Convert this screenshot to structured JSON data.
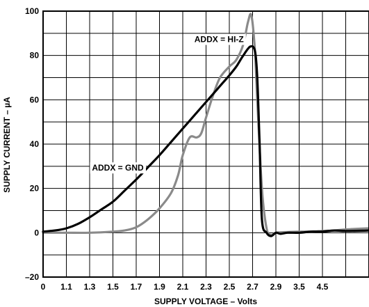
{
  "chart_data": {
    "type": "line",
    "title": "",
    "xlabel": "SUPPLY VOLTAGE – Volts",
    "ylabel": "SUPPLY CURRENT – µA",
    "x_tick_labels": [
      "0",
      "1.1",
      "1.3",
      "1.5",
      "1.7",
      "1.9",
      "2.1",
      "2.3",
      "2.5",
      "2.7",
      "2.9",
      "3.5",
      "4.5"
    ],
    "x_tick_positions": [
      0,
      1,
      2,
      3,
      4,
      5,
      6,
      7,
      8,
      9,
      10,
      11,
      12
    ],
    "y_ticks": [
      -20,
      0,
      20,
      40,
      60,
      80,
      100
    ],
    "y_tick_labels": [
      "–20",
      "0",
      "20",
      "40",
      "60",
      "80",
      "100"
    ],
    "xlim": [
      0,
      14
    ],
    "ylim": [
      -20,
      100
    ],
    "grid": true,
    "x_scale_note": "non-linear: x values below are the tick-index positions along the axis",
    "series": [
      {
        "name": "ADDX = GND",
        "color": "#000000",
        "x": [
          0,
          0.5,
          1,
          1.5,
          2,
          2.5,
          3,
          3.5,
          4,
          4.5,
          5,
          5.5,
          6,
          6.5,
          7,
          7.5,
          8,
          8.3,
          8.6,
          8.9,
          9.1,
          9.2,
          9.3,
          9.4,
          9.6,
          9.8,
          10,
          10.2,
          10.5,
          11,
          11.5,
          12,
          12.5,
          13,
          14
        ],
        "y": [
          0.5,
          1,
          2,
          4,
          7,
          10.5,
          14,
          19,
          24,
          29.5,
          35,
          41,
          47,
          53,
          59,
          65,
          71,
          75,
          80,
          84,
          82,
          70,
          40,
          6,
          0,
          -1.5,
          0,
          -0.5,
          0,
          0,
          0.5,
          0.5,
          1,
          0.8,
          1
        ]
      },
      {
        "name": "ADDX = HI-Z",
        "color": "#8a8a8a",
        "x": [
          0,
          1,
          2,
          3,
          3.5,
          4,
          4.5,
          5,
          5.5,
          5.8,
          6,
          6.3,
          6.6,
          6.8,
          7,
          7.3,
          7.6,
          8,
          8.3,
          8.6,
          8.8,
          8.95,
          9.1,
          9.2,
          9.4,
          9.6,
          9.8,
          10,
          10.5,
          11,
          11.5,
          12,
          12.5,
          13,
          14
        ],
        "y": [
          0,
          0,
          0,
          0.5,
          1,
          2.5,
          6,
          11,
          18,
          26,
          35,
          43,
          43,
          45,
          52,
          62,
          70,
          75,
          78,
          85,
          95,
          98,
          82,
          60,
          20,
          2,
          -1,
          0,
          0.3,
          0.5,
          0.5,
          0.8,
          1,
          1.5,
          2
        ]
      }
    ],
    "annotations": [
      {
        "text": "ADDX = HI-Z",
        "x": 6.5,
        "y": 86
      },
      {
        "text": "ADDX = GND",
        "x": 2.1,
        "y": 28
      }
    ]
  }
}
